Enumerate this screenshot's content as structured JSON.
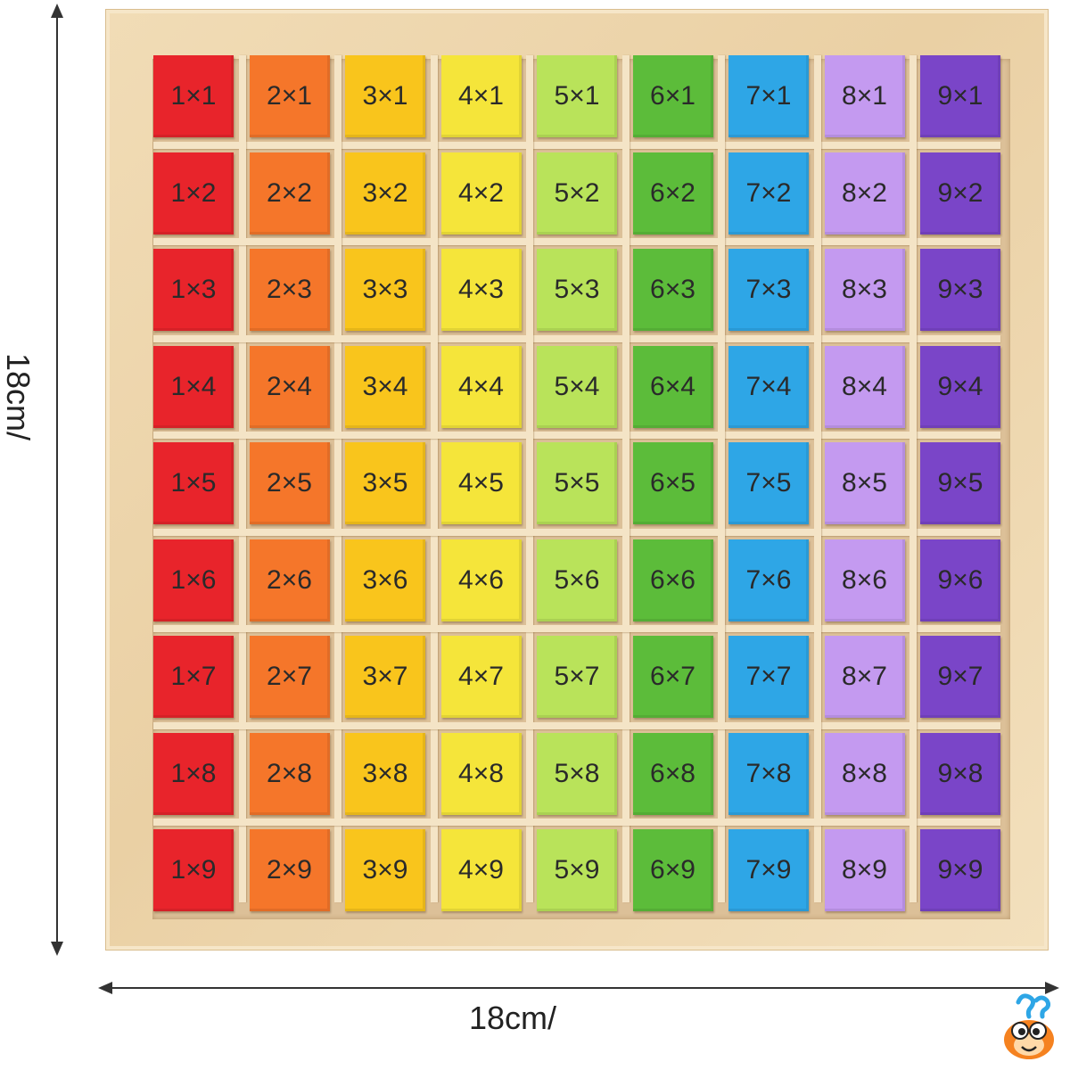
{
  "dimension_labels": {
    "vertical": "18cm/",
    "horizontal": "18cm/"
  },
  "columns": [
    {
      "color": "#e8242b",
      "labels": [
        "1×1",
        "1×2",
        "1×3",
        "1×4",
        "1×5",
        "1×6",
        "1×7",
        "1×8",
        "1×9"
      ]
    },
    {
      "color": "#f5762a",
      "labels": [
        "2×1",
        "2×2",
        "2×3",
        "2×4",
        "2×5",
        "2×6",
        "2×7",
        "2×8",
        "2×9"
      ]
    },
    {
      "color": "#f9c51c",
      "labels": [
        "3×1",
        "3×2",
        "3×3",
        "3×4",
        "3×5",
        "3×6",
        "3×7",
        "3×8",
        "3×9"
      ]
    },
    {
      "color": "#f5e53a",
      "labels": [
        "4×1",
        "4×2",
        "4×3",
        "4×4",
        "4×5",
        "4×6",
        "4×7",
        "4×8",
        "4×9"
      ]
    },
    {
      "color": "#b9e35a",
      "labels": [
        "5×1",
        "5×2",
        "5×3",
        "5×4",
        "5×5",
        "5×6",
        "5×7",
        "5×8",
        "5×9"
      ]
    },
    {
      "color": "#5cbc3a",
      "labels": [
        "6×1",
        "6×2",
        "6×3",
        "6×4",
        "6×5",
        "6×6",
        "6×7",
        "6×8",
        "6×9"
      ]
    },
    {
      "color": "#2ea6e6",
      "labels": [
        "7×1",
        "7×2",
        "7×3",
        "7×4",
        "7×5",
        "7×6",
        "7×7",
        "7×8",
        "7×9"
      ]
    },
    {
      "color": "#c49af0",
      "labels": [
        "8×1",
        "8×2",
        "8×3",
        "8×4",
        "8×5",
        "8×6",
        "8×7",
        "8×8",
        "8×9"
      ]
    },
    {
      "color": "#7a45c8",
      "labels": [
        "9×1",
        "9×2",
        "9×3",
        "9×4",
        "9×5",
        "9×6",
        "9×7",
        "9×8",
        "9×9"
      ]
    }
  ],
  "logo": {
    "icon": "mascot-icon"
  }
}
